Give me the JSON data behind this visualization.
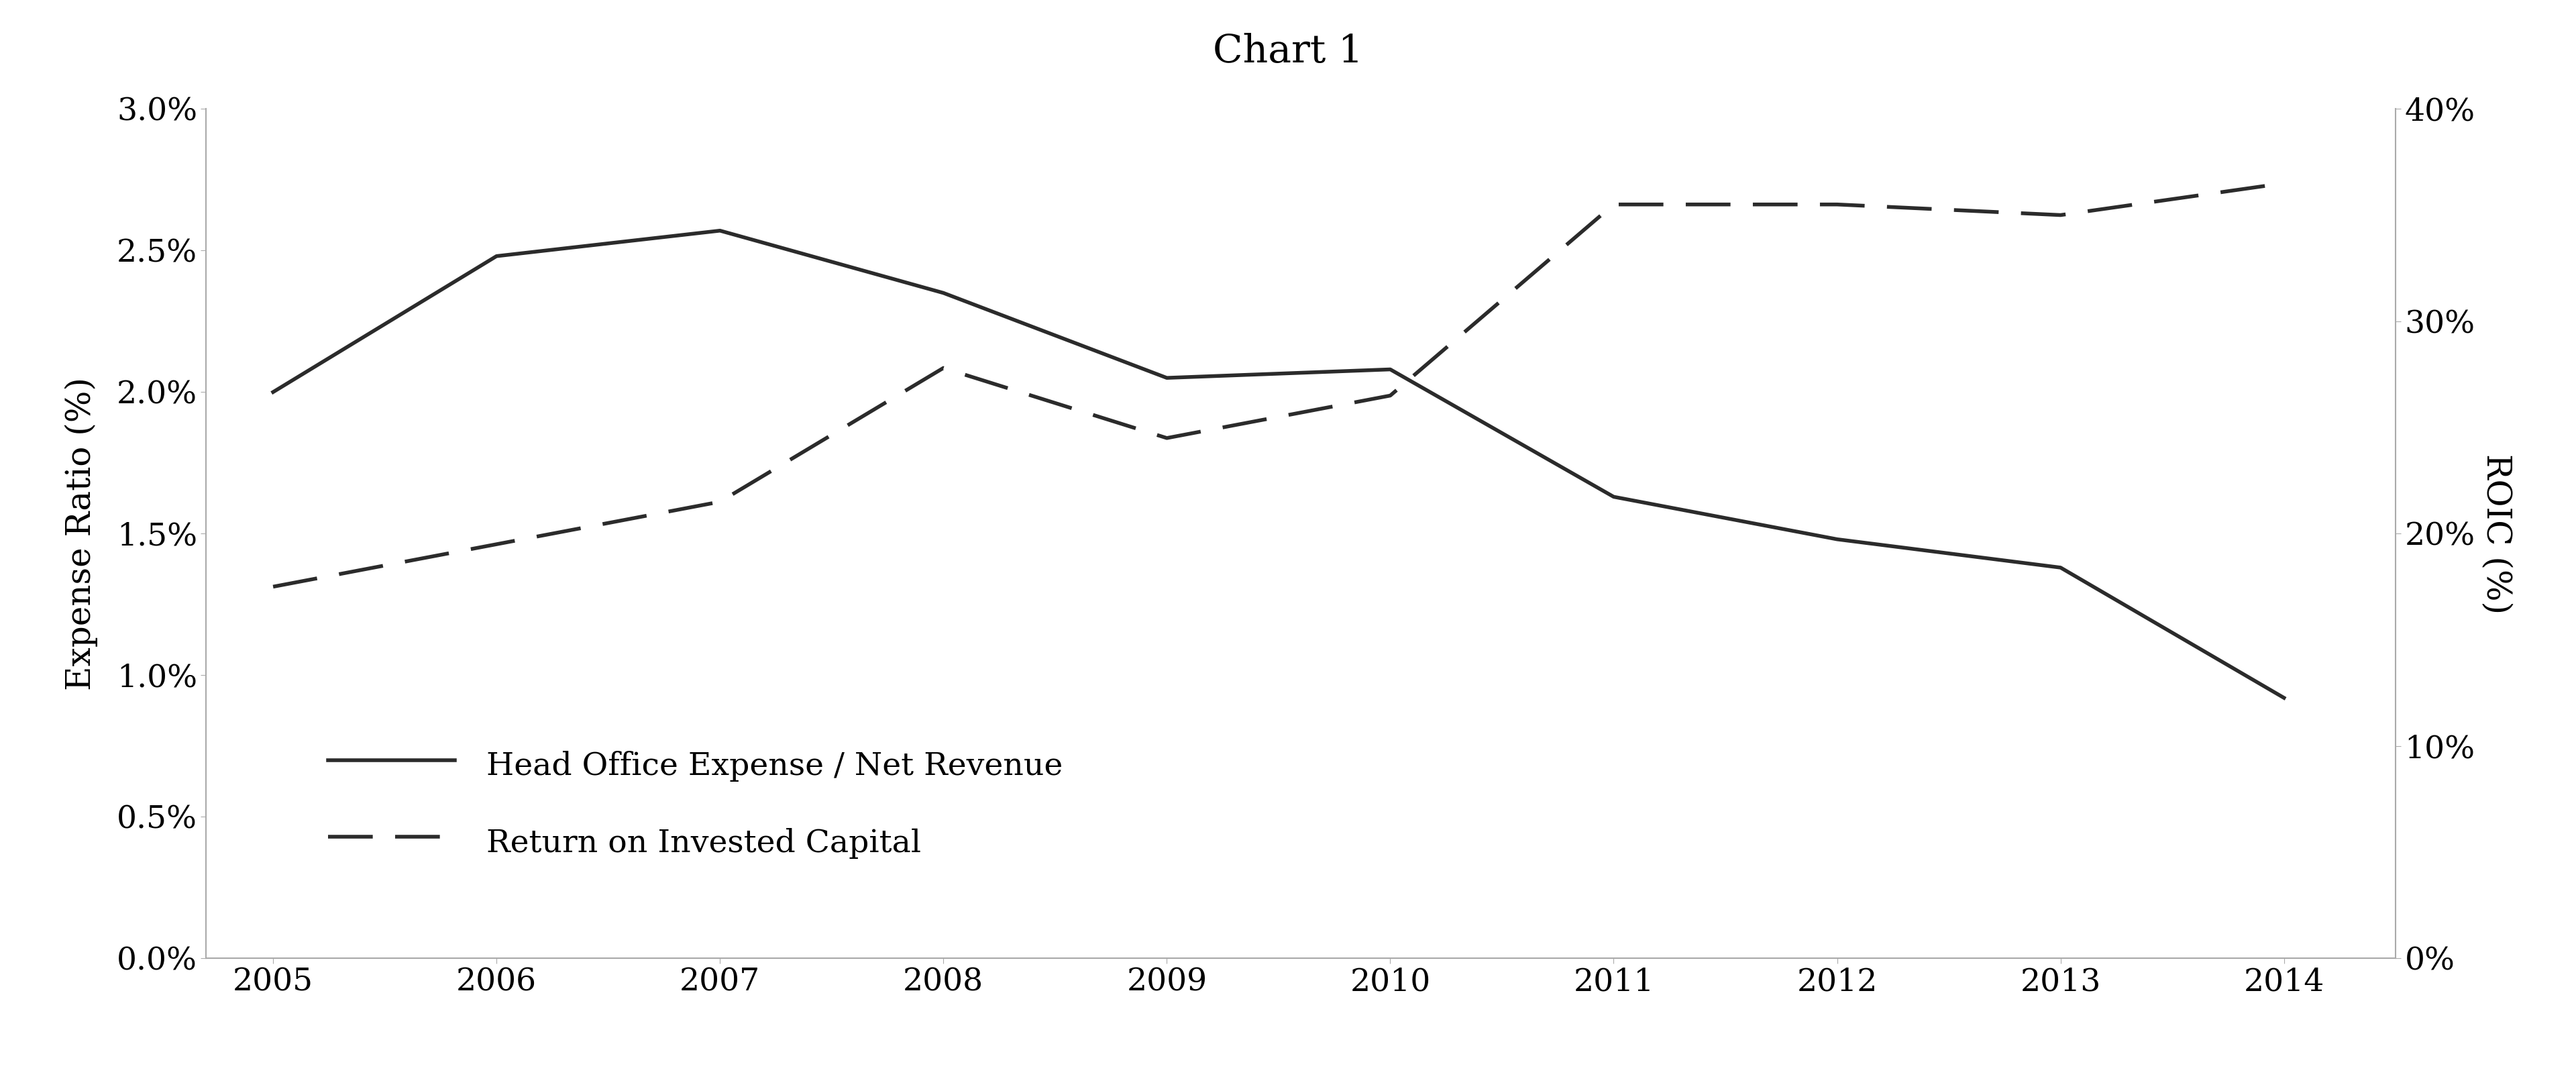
{
  "title": "Chart 1",
  "years": [
    2005,
    2006,
    2007,
    2008,
    2009,
    2010,
    2011,
    2012,
    2013,
    2014
  ],
  "expense_ratio": [
    0.02,
    0.0248,
    0.0257,
    0.0235,
    0.0205,
    0.0208,
    0.0163,
    0.0148,
    0.0138,
    0.0092
  ],
  "roic": [
    0.175,
    0.195,
    0.215,
    0.278,
    0.245,
    0.265,
    0.355,
    0.355,
    0.35,
    0.365
  ],
  "left_ylim": [
    0.0,
    0.03
  ],
  "right_ylim": [
    0.0,
    0.4
  ],
  "left_yticks": [
    0.0,
    0.005,
    0.01,
    0.015,
    0.02,
    0.025,
    0.03
  ],
  "right_yticks": [
    0.0,
    0.1,
    0.2,
    0.3,
    0.4
  ],
  "left_ylabel": "Expense Ratio (%)",
  "right_ylabel": "ROIC (%)",
  "legend_expense": "Head Office Expense / Net Revenue",
  "legend_roic": "Return on Invested Capital",
  "line_color": "#2b2b2b",
  "background_color": "#ffffff",
  "title_fontsize": 42,
  "label_fontsize": 36,
  "tick_fontsize": 34,
  "legend_fontsize": 34
}
